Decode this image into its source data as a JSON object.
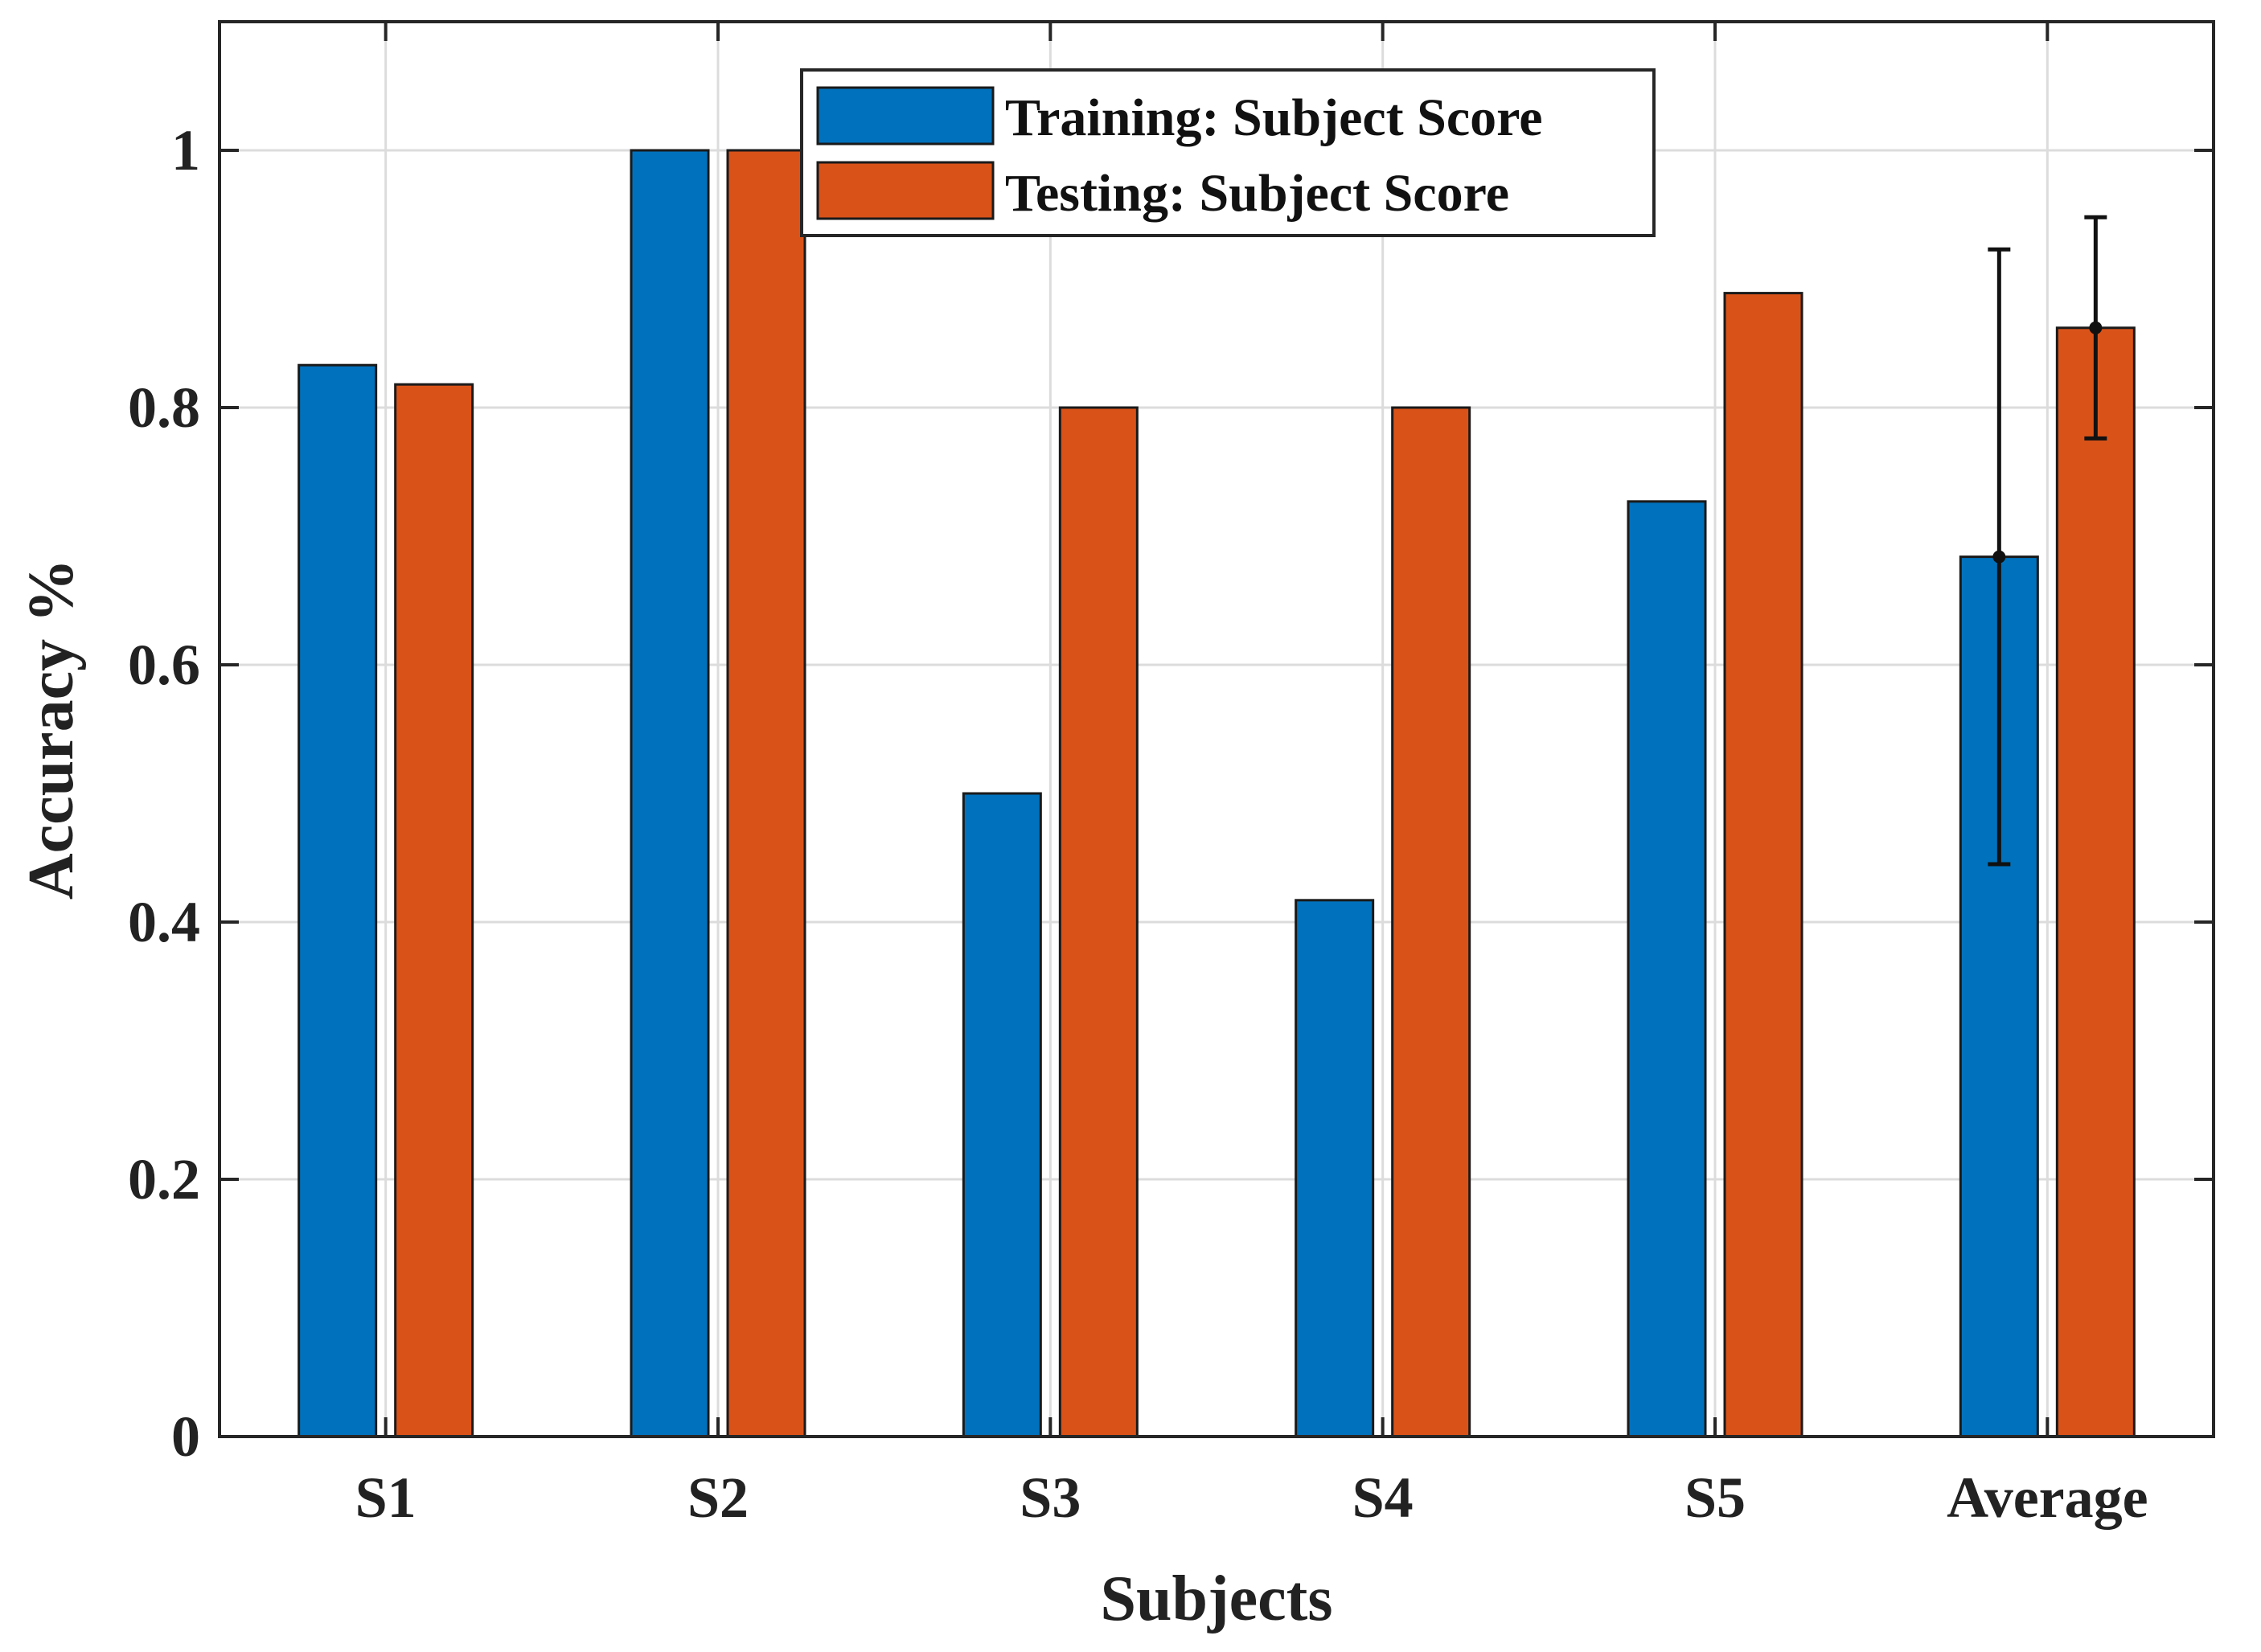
{
  "chart_data": {
    "type": "bar",
    "categories": [
      "S1",
      "S2",
      "S3",
      "S4",
      "S5",
      "Average"
    ],
    "series": [
      {
        "name": "Training: Subject Score",
        "color": "#0072BD",
        "values": [
          0.833,
          1.0,
          0.5,
          0.417,
          0.727,
          0.684
        ],
        "error": [
          null,
          null,
          null,
          null,
          null,
          0.239
        ]
      },
      {
        "name": "Testing: Subject Score",
        "color": "#D95319",
        "values": [
          0.818,
          1.0,
          0.8,
          0.8,
          0.889,
          0.862
        ],
        "error": [
          null,
          null,
          null,
          null,
          null,
          0.086
        ]
      }
    ],
    "xlabel": "Subjects",
    "ylabel": "Accuracy %",
    "ylim": [
      0,
      1.1
    ],
    "yticks": [
      0,
      0.2,
      0.4,
      0.6,
      0.8,
      1
    ],
    "ytick_labels": [
      "0",
      "0.2",
      "0.4",
      "0.6",
      "0.8",
      "1"
    ],
    "grid": true,
    "legend_position": "top-center"
  }
}
